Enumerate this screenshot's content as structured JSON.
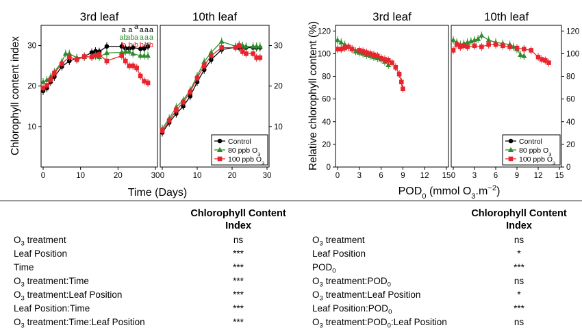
{
  "chart_data": [
    {
      "type": "line",
      "title": "3rd leaf",
      "xlabel": "Time (Days)",
      "ylabel": "Chlorophyll content index",
      "xlim": [
        0,
        30
      ],
      "ylim": [
        0,
        35
      ],
      "xticks": [
        0,
        10,
        20,
        30
      ],
      "yticks": [
        10,
        20,
        30
      ],
      "series": [
        {
          "name": "Control",
          "color": "#000000",
          "marker": "circle",
          "x": [
            0,
            1,
            2,
            3,
            5,
            7,
            9,
            11,
            13,
            14,
            15,
            17,
            21,
            22,
            23,
            24,
            26,
            27,
            28
          ],
          "y": [
            18.8,
            19.5,
            21,
            22.3,
            24.8,
            26.2,
            26.8,
            27.3,
            28.3,
            28.6,
            28.5,
            29.8,
            29.8,
            29.3,
            29.3,
            29.5,
            29.2,
            29.3,
            29.8
          ]
        },
        {
          "name": "80 ppb O3",
          "color": "#2e8b2e",
          "marker": "triangle",
          "x": [
            0,
            1,
            2,
            3,
            5,
            6,
            7,
            9,
            11,
            13,
            14,
            15,
            17,
            21,
            22,
            23,
            24,
            26,
            27,
            28
          ],
          "y": [
            21,
            21.5,
            22.3,
            23.5,
            26,
            28,
            28,
            27,
            27.2,
            27.2,
            27.5,
            27.2,
            28.2,
            28.3,
            28.5,
            28.5,
            28,
            27.5,
            27.5,
            27.5
          ]
        },
        {
          "name": "100 ppb O3",
          "color": "#e8242c",
          "marker": "square",
          "x": [
            0,
            1,
            2,
            3,
            5,
            7,
            9,
            11,
            13,
            14,
            15,
            17,
            21,
            22,
            23,
            24,
            25,
            26,
            27,
            28
          ],
          "y": [
            19.5,
            20.2,
            21.5,
            23.2,
            25.5,
            27.2,
            26.5,
            27.3,
            27.2,
            27.5,
            27.8,
            26.2,
            27.5,
            26.2,
            25,
            25,
            24.5,
            22.5,
            21.2,
            20.8
          ]
        }
      ],
      "annotations": [
        {
          "x": 21.5,
          "lines": [
            {
              "text": "a",
              "color": "#000000"
            },
            {
              "text": "ab",
              "color": "#2e8b2e"
            },
            {
              "text": "b",
              "color": "#e8242c"
            }
          ]
        },
        {
          "x": 23.3,
          "lines": [
            {
              "text": "a",
              "color": "#000000"
            },
            {
              "text": "ab",
              "color": "#2e8b2e"
            },
            {
              "text": "b",
              "color": "#e8242c"
            }
          ]
        },
        {
          "x": 24.9,
          "lines": [
            {
              "text": "a",
              "color": "#000000"
            },
            {
              "text": "a",
              "color": "#2e8b2e"
            },
            {
              "text": "b",
              "color": "#e8242c"
            }
          ],
          "first_line_raised": true
        },
        {
          "x": 26.3,
          "lines": [
            {
              "text": "a",
              "color": "#000000"
            },
            {
              "text": "a",
              "color": "#2e8b2e"
            },
            {
              "text": "b",
              "color": "#e8242c"
            }
          ]
        },
        {
          "x": 27.6,
          "lines": [
            {
              "text": "a",
              "color": "#000000"
            },
            {
              "text": "a",
              "color": "#2e8b2e"
            },
            {
              "text": "b",
              "color": "#e8242c"
            }
          ]
        },
        {
          "x": 28.9,
          "lines": [
            {
              "text": "a",
              "color": "#000000"
            },
            {
              "text": "a",
              "color": "#2e8b2e"
            },
            {
              "text": "b",
              "color": "#e8242c"
            }
          ]
        }
      ]
    },
    {
      "type": "line",
      "title": "10th leaf",
      "xlabel": "Time (Days)",
      "ylabel": "Chlorophyll content index",
      "xlim": [
        0,
        30
      ],
      "ylim": [
        0,
        35
      ],
      "xticks": [
        0,
        10,
        20,
        30
      ],
      "yticks": [
        10,
        20,
        30
      ],
      "legend": "bottom-right",
      "series": [
        {
          "name": "Control",
          "color": "#000000",
          "marker": "circle",
          "x": [
            0,
            2,
            4,
            6,
            8,
            10,
            12,
            14,
            17,
            21,
            22,
            23,
            24,
            26,
            27,
            28
          ],
          "y": [
            8.5,
            11,
            13.2,
            15,
            17.5,
            21,
            24,
            26.5,
            29,
            29.6,
            29.5,
            29.7,
            29.5,
            29.5,
            29.5,
            29.5
          ]
        },
        {
          "name": "80 ppb O3",
          "color": "#2e8b2e",
          "marker": "triangle",
          "x": [
            0,
            2,
            4,
            6,
            8,
            10,
            12,
            14,
            17,
            21,
            22,
            23,
            24,
            26,
            27,
            28
          ],
          "y": [
            9.5,
            12,
            14.8,
            16.5,
            19,
            22.5,
            26,
            28.3,
            31,
            29.8,
            30.2,
            30,
            29.8,
            29.8,
            29.8,
            29.8
          ]
        },
        {
          "name": "100 ppb O3",
          "color": "#e8242c",
          "marker": "square",
          "x": [
            0,
            2,
            4,
            6,
            8,
            10,
            12,
            14,
            17,
            21,
            22,
            23,
            24,
            26,
            27,
            28
          ],
          "y": [
            9,
            11.5,
            14,
            16,
            18.5,
            22,
            25,
            27.5,
            29.5,
            29.5,
            30,
            28.5,
            28,
            28,
            27,
            27
          ]
        }
      ]
    },
    {
      "type": "line",
      "title": "3rd leaf",
      "xlabel": "POD0 (mmol O3.m−2)",
      "ylabel": "Relative chlorophyll content (%)",
      "xlim": [
        0,
        15
      ],
      "ylim": [
        0,
        125
      ],
      "xticks": [
        0,
        3,
        6,
        9,
        12,
        15
      ],
      "yticks": [
        0,
        20,
        40,
        60,
        80,
        100,
        120
      ],
      "series": [
        {
          "name": "Control",
          "color": "#000000",
          "marker": "circle",
          "x": [],
          "y": []
        },
        {
          "name": "80 ppb O3",
          "color": "#2e8b2e",
          "marker": "triangle",
          "x": [
            0,
            0.5,
            1,
            1.5,
            2,
            2.5,
            3,
            3.5,
            4,
            4.5,
            5,
            5.5,
            6,
            6.5,
            7
          ],
          "y": [
            112,
            110,
            108,
            106,
            104,
            102,
            101,
            100,
            99,
            98,
            97,
            96,
            95,
            93,
            90
          ]
        },
        {
          "name": "100 ppb O3",
          "color": "#e8242c",
          "marker": "square",
          "x": [
            0,
            0.5,
            1,
            1.5,
            2,
            3,
            3.5,
            4,
            4.5,
            5,
            5.5,
            6,
            6.5,
            7,
            7.5,
            8,
            8.5,
            8.8,
            9
          ],
          "y": [
            104,
            104,
            105,
            106,
            104,
            103,
            102,
            101,
            100,
            99,
            98,
            96,
            95,
            94,
            92,
            88,
            82,
            75,
            69
          ]
        }
      ]
    },
    {
      "type": "line",
      "title": "10th leaf",
      "xlabel": "POD0 (mmol O3.m−2)",
      "ylabel": "Relative chlorophyll content (%)",
      "xlim": [
        0,
        15
      ],
      "ylim": [
        0,
        125
      ],
      "xticks": [
        0,
        3,
        6,
        9,
        12,
        15
      ],
      "yticks": [
        0,
        20,
        40,
        60,
        80,
        100,
        120
      ],
      "legend": "bottom-right",
      "series": [
        {
          "name": "Control",
          "color": "#000000",
          "marker": "circle",
          "x": [],
          "y": []
        },
        {
          "name": "80 ppb O3",
          "color": "#2e8b2e",
          "marker": "triangle",
          "x": [
            0,
            0.5,
            1,
            1.5,
            2,
            2.5,
            3,
            3.5,
            4,
            5,
            6,
            7,
            8,
            8.5,
            9,
            9.5,
            10
          ],
          "y": [
            112,
            110,
            108,
            109,
            110,
            111,
            112,
            113,
            116,
            112,
            110,
            109,
            108,
            106,
            104,
            99,
            98
          ]
        },
        {
          "name": "100 ppb O3",
          "color": "#e8242c",
          "marker": "square",
          "x": [
            0,
            0.5,
            1,
            1.5,
            2,
            3,
            4,
            5,
            6,
            7,
            8,
            9,
            10,
            11,
            12,
            12.5,
            13,
            13.5
          ],
          "y": [
            103,
            108,
            106,
            107,
            106,
            107,
            106,
            108,
            108,
            107,
            106,
            105,
            104,
            103,
            97,
            95,
            94,
            92
          ]
        }
      ]
    }
  ],
  "legend_entries": [
    "Control",
    "80 ppb O3",
    "100 ppb O3"
  ],
  "tables": [
    {
      "header": [
        "Chlorophyll Content",
        "Index"
      ],
      "rows": [
        {
          "factor": [
            "O",
            "3",
            " treatment"
          ],
          "value": "ns"
        },
        {
          "factor": [
            "Leaf Position"
          ],
          "value": "***"
        },
        {
          "factor": [
            "Time"
          ],
          "value": "***"
        },
        {
          "factor": [
            "O",
            "3",
            " treatment:Time"
          ],
          "value": "***"
        },
        {
          "factor": [
            "O",
            "3",
            " treatment:Leaf Position"
          ],
          "value": "***"
        },
        {
          "factor": [
            "Leaf Position:Time"
          ],
          "value": "***"
        },
        {
          "factor": [
            "O",
            "3",
            " treatment:Time:Leaf Position"
          ],
          "value": "***"
        }
      ]
    },
    {
      "header": [
        "Chlorophyll Content",
        "Index"
      ],
      "rows": [
        {
          "factor": [
            "O",
            "3",
            " treatment"
          ],
          "value": "ns"
        },
        {
          "factor": [
            "Leaf Position"
          ],
          "value": "*"
        },
        {
          "factor": [
            "POD",
            "0",
            ""
          ],
          "value": "***"
        },
        {
          "factor": [
            "O",
            "3",
            " treatment:POD",
            "0",
            ""
          ],
          "value": "ns"
        },
        {
          "factor": [
            "O",
            "3",
            " treatment:Leaf Position"
          ],
          "value": "*"
        },
        {
          "factor": [
            "Leaf Position:POD",
            "0",
            ""
          ],
          "value": "***"
        },
        {
          "factor": [
            "O",
            "3",
            " treatment:POD",
            "0",
            ":Leaf Position"
          ],
          "value": "ns"
        }
      ]
    }
  ]
}
